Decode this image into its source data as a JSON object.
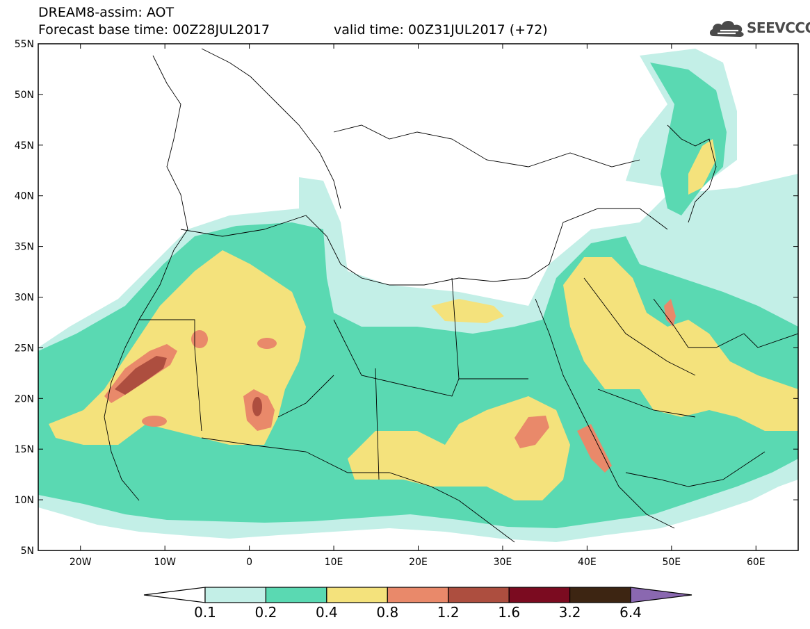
{
  "header": {
    "title_line1": "DREAM8-assim: AOT",
    "title_line2": "Forecast base time: 00Z28JUL2017",
    "valid_time": "valid time: 00Z31JUL2017 (+72)"
  },
  "logo": {
    "text": "SEEVCCC",
    "icon": "cloud-icon",
    "color": "#4a4a4a"
  },
  "axes": {
    "lat_labels": [
      "55N",
      "50N",
      "45N",
      "40N",
      "35N",
      "30N",
      "25N",
      "20N",
      "15N",
      "10N",
      "5N"
    ],
    "lon_labels": [
      "20W",
      "10W",
      "0",
      "10E",
      "20E",
      "30E",
      "40E",
      "50E",
      "60E"
    ],
    "lat_range": [
      5,
      55
    ],
    "lon_range": [
      -25,
      65
    ]
  },
  "colorbar": {
    "levels": [
      "0.1",
      "0.2",
      "0.4",
      "0.8",
      "1.2",
      "1.6",
      "3.2",
      "6.4"
    ],
    "colors": [
      "#ffffff",
      "#c3efe7",
      "#5ad9b2",
      "#f4e27c",
      "#e9896a",
      "#ad4e3f",
      "#7b0b20",
      "#3d2512",
      "#8a68b0"
    ]
  },
  "map_colors": {
    "ocean": "#ffffff",
    "level_01": "#c3efe7",
    "level_02": "#5ad9b2",
    "level_04": "#f4e27c",
    "level_08": "#e9896a",
    "level_12": "#ad4e3f",
    "border": "#000000"
  }
}
